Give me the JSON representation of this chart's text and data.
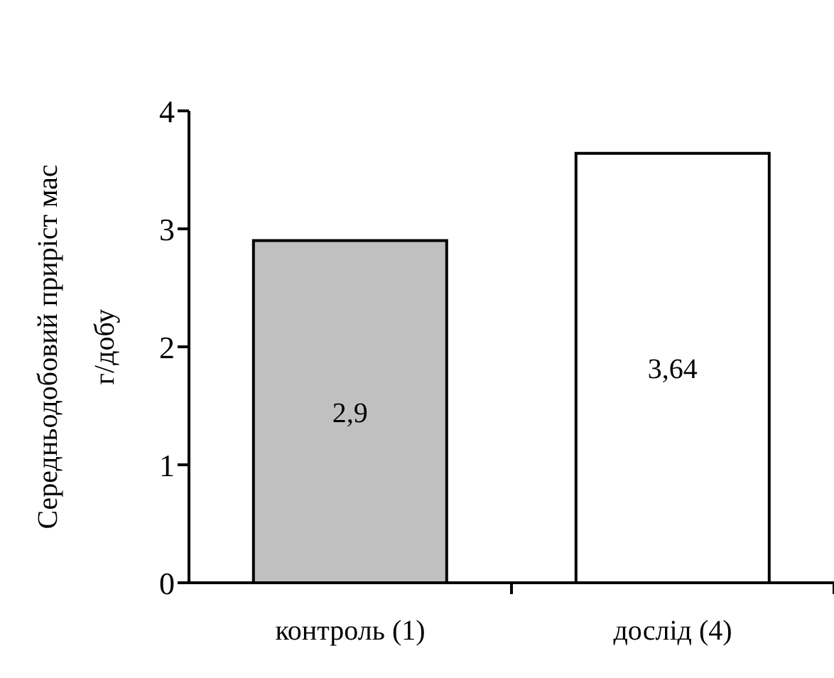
{
  "chart_data": {
    "type": "bar",
    "ylabel": "Середньодобовий приріст мас\nг/добу",
    "categories": [
      "контроль (1)",
      "дослід   (4)"
    ],
    "values": [
      2.9,
      3.64
    ],
    "colors": [
      "#c0c0c0",
      "#ffffff"
    ],
    "value_labels": [
      "2,9",
      "3,64"
    ],
    "ylim": [
      0,
      4
    ],
    "yticks": [
      0,
      1,
      2,
      3,
      4
    ]
  }
}
